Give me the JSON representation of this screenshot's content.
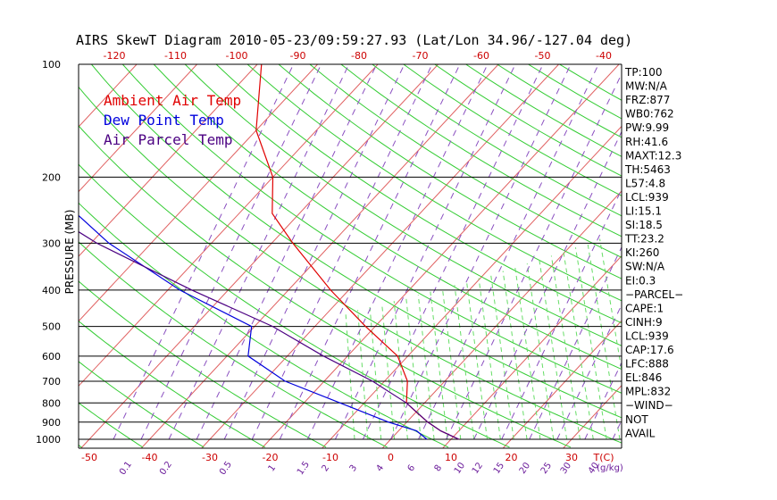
{
  "chart_data": {
    "type": "skewt",
    "title": "AIRS SkewT Diagram 2010-05-23/09:59:27.93 (Lat/Lon 34.96/-127.04 deg)",
    "ylabel": "PRESSURE (MB)",
    "pressure_ticks": [
      100,
      200,
      300,
      400,
      500,
      600,
      700,
      800,
      900,
      1000
    ],
    "top_temp_ticks": [
      -120,
      -110,
      -100,
      -90,
      -80,
      -70,
      -60,
      -50,
      -40
    ],
    "bottom_temp_ticks": [
      -50,
      -40,
      -30,
      -20,
      -10,
      0,
      10,
      20,
      30
    ],
    "bottom_unit": "T(C)",
    "mixing_ratio_ticks": [
      "0.1",
      "0.2",
      "0.5",
      "1",
      "1.5",
      "2",
      "3",
      "4",
      "6",
      "8",
      "10",
      "12",
      "15",
      "20",
      "25",
      "30",
      "40"
    ],
    "mixing_unit": "(g/kg)",
    "legend": [
      {
        "name": "Ambient Air Temp",
        "color": "#e00000"
      },
      {
        "name": "Dew Point Temp",
        "color": "#0000dd"
      },
      {
        "name": "Air Parcel Temp",
        "color": "#4b0082"
      }
    ],
    "series": [
      {
        "name": "Ambient Air Temp",
        "color": "#e00000",
        "points": [
          [
            100,
            -79.3
          ],
          [
            150,
            -70
          ],
          [
            200,
            -60
          ],
          [
            250,
            -54.5
          ],
          [
            300,
            -46.5
          ],
          [
            400,
            -33
          ],
          [
            500,
            -21.6
          ],
          [
            600,
            -11.7
          ],
          [
            700,
            -6.2
          ],
          [
            800,
            -3
          ],
          [
            850,
            0.3
          ],
          [
            900,
            3.5
          ],
          [
            950,
            7
          ],
          [
            1000,
            11.3
          ]
        ]
      },
      {
        "name": "Dew Point Temp",
        "color": "#0000dd",
        "points": [
          [
            100,
            -110.8
          ],
          [
            150,
            -103
          ],
          [
            200,
            -93
          ],
          [
            250,
            -87
          ],
          [
            300,
            -77
          ],
          [
            400,
            -58
          ],
          [
            500,
            -40.5
          ],
          [
            600,
            -36.5
          ],
          [
            700,
            -26.5
          ],
          [
            800,
            -14
          ],
          [
            900,
            -3
          ],
          [
            950,
            3
          ],
          [
            1000,
            6
          ]
        ]
      },
      {
        "name": "Air Parcel Temp",
        "color": "#4b0082",
        "points": [
          [
            100,
            -134
          ],
          [
            150,
            -119
          ],
          [
            200,
            -104
          ],
          [
            250,
            -91.5
          ],
          [
            300,
            -79
          ],
          [
            400,
            -56
          ],
          [
            500,
            -37
          ],
          [
            600,
            -24
          ],
          [
            700,
            -12
          ],
          [
            800,
            -3
          ],
          [
            900,
            3.5
          ],
          [
            950,
            7
          ],
          [
            1000,
            11.3
          ]
        ]
      }
    ],
    "stats": [
      "TP:100",
      "MW:N/A",
      "FRZ:877",
      "WB0:762",
      "PW:9.99",
      "RH:41.6",
      "MAXT:12.3",
      "TH:5463",
      "L57:4.8",
      "LCL:939",
      "LI:15.1",
      "SI:18.5",
      "TT:23.2",
      "KI:260",
      "SW:N/A",
      "EI:0.3",
      "−PARCEL−",
      "CAPE:1",
      "CINH:9",
      "LCL:939",
      "CAP:17.6",
      "LFC:888",
      "EL:846",
      "MPL:832",
      "−WIND−",
      "NOT",
      "AVAIL"
    ]
  }
}
